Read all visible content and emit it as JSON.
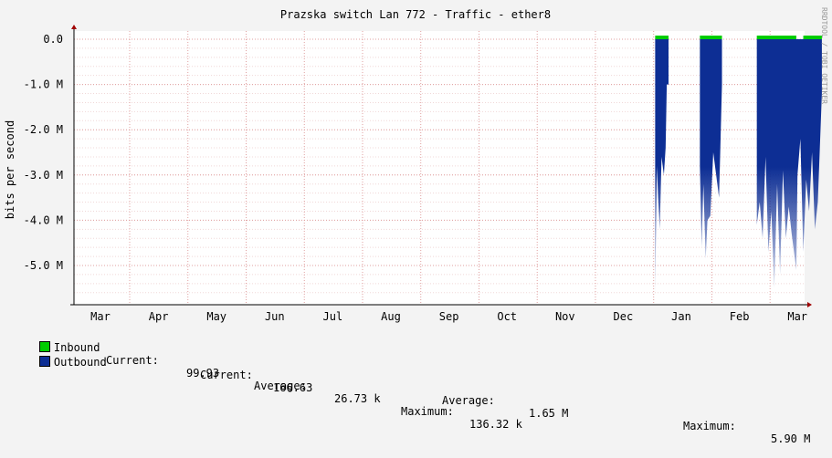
{
  "chart_data": {
    "type": "area",
    "title": "Prazska switch Lan 772 - Traffic - ether8",
    "ylabel": "bits per second",
    "watermark": "RRDTOOL / TOBI OETIKER",
    "yticks": [
      "0.0",
      "-1.0 M",
      "-2.0 M",
      "-3.0 M",
      "-4.0 M",
      "-5.0 M"
    ],
    "ylim": [
      -5.9,
      0.1
    ],
    "x_months": [
      "Mar",
      "Apr",
      "May",
      "Jun",
      "Jul",
      "Aug",
      "Sep",
      "Oct",
      "Nov",
      "Dec",
      "Jan",
      "Feb",
      "Mar"
    ],
    "grid": true,
    "colors": {
      "inbound": "#00cc00",
      "outbound": "#0d2e94",
      "grid": "#e0a0a0",
      "axis": "#000000",
      "arrow": "#a00000"
    },
    "series": [
      {
        "name": "Inbound",
        "segments": [
          [
            9.55,
            9.78
          ],
          [
            10.32,
            10.7
          ],
          [
            11.3,
            11.98
          ],
          [
            12.1,
            12.42
          ],
          [
            12.6,
            12.95
          ]
        ],
        "level": 0.09
      },
      {
        "name": "Outbound",
        "x": [
          9.55,
          9.58,
          9.6,
          9.63,
          9.66,
          9.7,
          9.73,
          9.75,
          9.78,
          9.78,
          10.32,
          10.35,
          10.38,
          10.42,
          10.45,
          10.5,
          10.55,
          10.6,
          10.65,
          10.7,
          10.7,
          11.3,
          11.35,
          11.4,
          11.45,
          11.5,
          11.55,
          11.6,
          11.65,
          11.7,
          11.75,
          11.8,
          11.85,
          11.9,
          11.98,
          12.0,
          12.05,
          12.1,
          12.15,
          12.2,
          12.25,
          12.3,
          12.35,
          12.42,
          12.42,
          12.6,
          12.65,
          12.7,
          12.75,
          12.8,
          12.85,
          12.9,
          12.95,
          12.95
        ],
        "values": [
          -5.65,
          -2.8,
          -3.5,
          -4.2,
          -2.6,
          -3.0,
          -2.4,
          -1.0,
          -1.0,
          0,
          -2.8,
          -4.6,
          -3.2,
          -4.85,
          -4.0,
          -3.9,
          -2.5,
          -3.0,
          -3.5,
          -1.0,
          0,
          -4.1,
          -3.6,
          -4.4,
          -2.6,
          -4.7,
          -3.8,
          -5.5,
          -3.2,
          -5.2,
          -2.9,
          -4.4,
          -3.7,
          -4.3,
          -5.1,
          -3.0,
          -2.2,
          -4.7,
          -3.1,
          -3.8,
          -2.5,
          -4.2,
          -3.6,
          -1.2,
          0,
          -3.5,
          -2.8,
          -4.2,
          -3.0,
          -4.4,
          -3.7,
          -2.9,
          -2.5,
          0
        ]
      }
    ],
    "tail_line": {
      "x": [
        12.95,
        13.95
      ],
      "value": 0
    }
  },
  "legend": {
    "inbound": {
      "label": "Inbound",
      "current_label": "Current:",
      "current_value": "99.93",
      "average_label": "Average:",
      "average_value": "26.73 k",
      "maximum_label": "Maximum:",
      "maximum_value": "136.32 k"
    },
    "outbound": {
      "label": "Outbound",
      "current_label": "Current:",
      "current_value": "166.63",
      "average_label": "Average:",
      "average_value": "1.65 M",
      "maximum_label": "Maximum:",
      "maximum_value": "5.90 M"
    }
  }
}
